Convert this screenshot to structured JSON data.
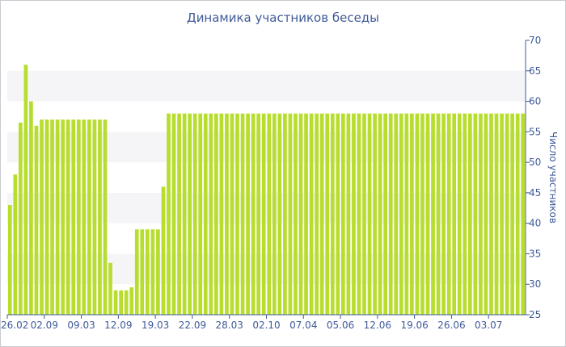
{
  "chart_data": {
    "type": "bar",
    "title": "Динамика участников беседы",
    "ylabel": "Число участников",
    "xlabel": "",
    "ylim": [
      25,
      70
    ],
    "yticks": [
      25,
      30,
      35,
      40,
      45,
      50,
      55,
      60,
      65,
      70
    ],
    "y_axis_side": "right",
    "grid": "alternating horizontal bands",
    "bar_color": "#b7de2e",
    "xtick_labels": [
      {
        "label": "26.02",
        "index": 0
      },
      {
        "label": "02.09",
        "index": 7
      },
      {
        "label": "09.03",
        "index": 14
      },
      {
        "label": "12.09",
        "index": 21
      },
      {
        "label": "19.03",
        "index": 28
      },
      {
        "label": "22.09",
        "index": 35
      },
      {
        "label": "28.03",
        "index": 42
      },
      {
        "label": "02.10",
        "index": 49
      },
      {
        "label": "07.04",
        "index": 56
      },
      {
        "label": "05.06",
        "index": 63
      },
      {
        "label": "12.06",
        "index": 70
      },
      {
        "label": "19.06",
        "index": 77
      },
      {
        "label": "26.06",
        "index": 84
      },
      {
        "label": "03.07",
        "index": 91
      }
    ],
    "values": [
      43,
      48,
      56.5,
      66,
      60,
      56,
      57,
      57,
      57,
      57,
      57,
      57,
      57,
      57,
      57,
      57,
      57,
      57,
      57,
      33.5,
      29,
      29,
      29,
      29.5,
      39,
      39,
      39,
      39,
      39,
      46,
      58,
      58,
      58,
      58,
      58,
      58,
      58,
      58,
      58,
      58,
      58,
      58,
      58,
      58,
      58,
      58,
      58,
      58,
      58,
      58,
      58,
      58,
      58,
      58,
      58,
      58,
      58,
      58,
      58,
      58,
      58,
      58,
      58,
      58,
      58,
      58,
      58,
      58,
      58,
      58,
      58,
      58,
      58,
      58,
      58,
      58,
      58,
      58,
      58,
      58,
      58,
      58,
      58,
      58,
      58,
      58,
      58,
      58,
      58,
      58,
      58,
      58,
      58,
      58,
      58,
      58,
      58,
      58
    ]
  }
}
